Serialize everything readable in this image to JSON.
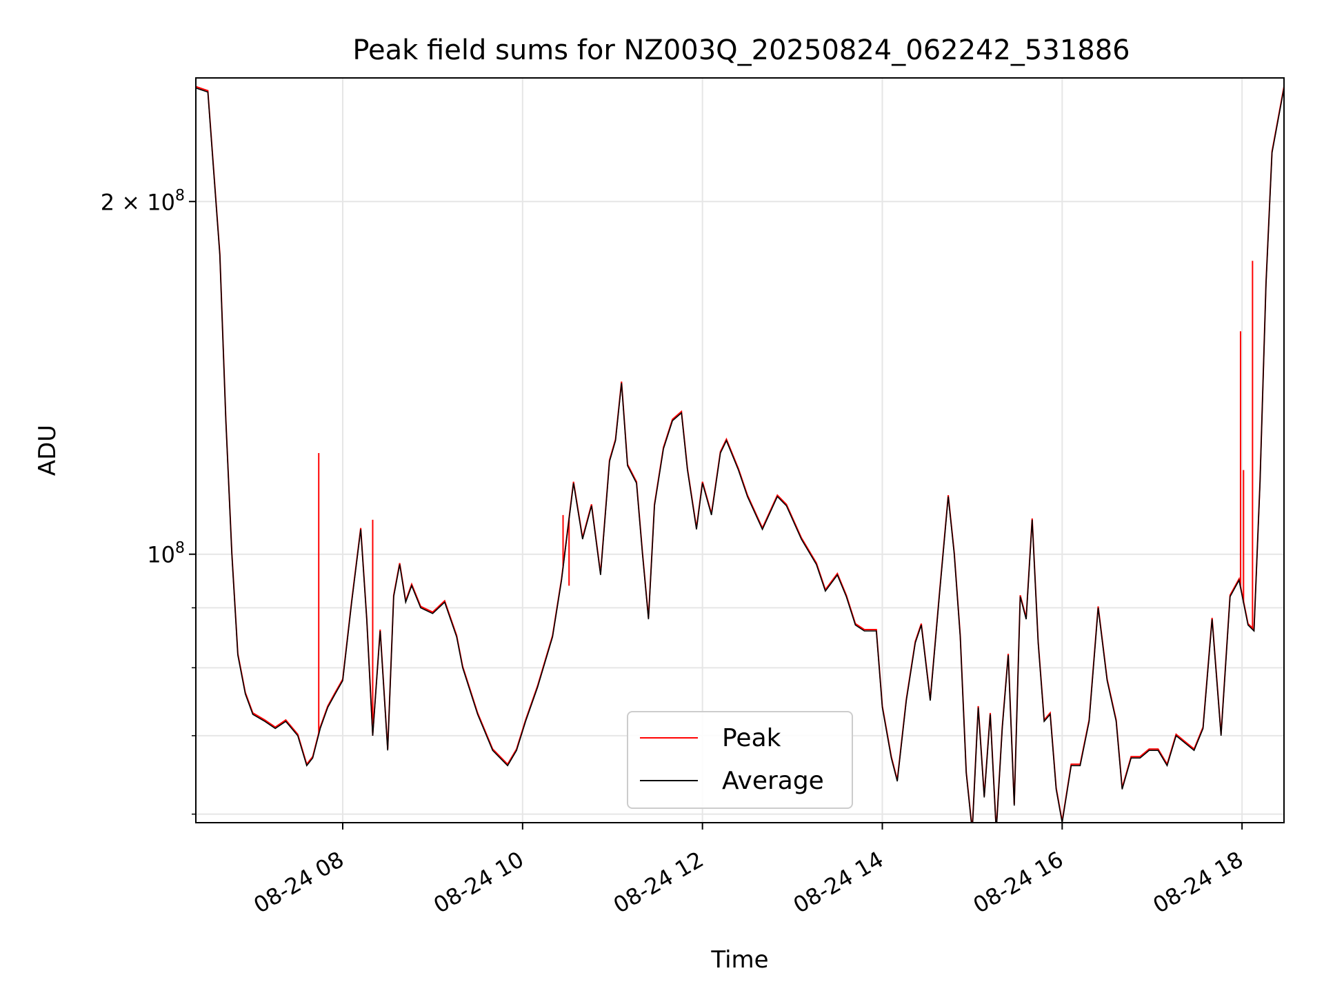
{
  "chart_data": {
    "type": "line",
    "title": "Peak field sums for NZ003Q_20250824_062242_531886",
    "xlabel": "Time",
    "ylabel": "ADU",
    "y_scale": "log",
    "grid": true,
    "legend_position": "lower center",
    "xlim": [
      "2025-08-24 06:22",
      "2025-08-24 18:28"
    ],
    "ylim": [
      59000000,
      255000000
    ],
    "x_ticks": [
      {
        "value": "2025-08-24 08:00",
        "label": "08-24 08"
      },
      {
        "value": "2025-08-24 10:00",
        "label": "08-24 10"
      },
      {
        "value": "2025-08-24 12:00",
        "label": "08-24 12"
      },
      {
        "value": "2025-08-24 14:00",
        "label": "08-24 14"
      },
      {
        "value": "2025-08-24 16:00",
        "label": "08-24 16"
      },
      {
        "value": "2025-08-24 18:00",
        "label": "08-24 18"
      }
    ],
    "y_ticks_major": [
      {
        "value": 100000000,
        "label_base": "10",
        "label_exp": "8",
        "label_coef": ""
      },
      {
        "value": 200000000,
        "label_base": "10",
        "label_exp": "8",
        "label_coef": "2 × "
      }
    ],
    "y_ticks_minor": [
      60000000,
      70000000,
      80000000,
      90000000
    ],
    "series": [
      {
        "name": "Average",
        "color": "#000000",
        "x": [
          "2025-08-24 06:22",
          "2025-08-24 06:30",
          "2025-08-24 06:38",
          "2025-08-24 06:42",
          "2025-08-24 06:46",
          "2025-08-24 06:50",
          "2025-08-24 06:55",
          "2025-08-24 07:00",
          "2025-08-24 07:08",
          "2025-08-24 07:15",
          "2025-08-24 07:22",
          "2025-08-24 07:30",
          "2025-08-24 07:36",
          "2025-08-24 07:40",
          "2025-08-24 07:45",
          "2025-08-24 07:50",
          "2025-08-24 07:55",
          "2025-08-24 08:00",
          "2025-08-24 08:06",
          "2025-08-24 08:12",
          "2025-08-24 08:16",
          "2025-08-24 08:20",
          "2025-08-24 08:25",
          "2025-08-24 08:30",
          "2025-08-24 08:34",
          "2025-08-24 08:38",
          "2025-08-24 08:42",
          "2025-08-24 08:46",
          "2025-08-24 08:52",
          "2025-08-24 09:00",
          "2025-08-24 09:08",
          "2025-08-24 09:16",
          "2025-08-24 09:20",
          "2025-08-24 09:30",
          "2025-08-24 09:40",
          "2025-08-24 09:50",
          "2025-08-24 09:56",
          "2025-08-24 10:02",
          "2025-08-24 10:10",
          "2025-08-24 10:20",
          "2025-08-24 10:26",
          "2025-08-24 10:34",
          "2025-08-24 10:40",
          "2025-08-24 10:46",
          "2025-08-24 10:52",
          "2025-08-24 10:58",
          "2025-08-24 11:02",
          "2025-08-24 11:06",
          "2025-08-24 11:10",
          "2025-08-24 11:16",
          "2025-08-24 11:20",
          "2025-08-24 11:24",
          "2025-08-24 11:28",
          "2025-08-24 11:34",
          "2025-08-24 11:40",
          "2025-08-24 11:46",
          "2025-08-24 11:50",
          "2025-08-24 11:56",
          "2025-08-24 12:00",
          "2025-08-24 12:06",
          "2025-08-24 12:12",
          "2025-08-24 12:16",
          "2025-08-24 12:24",
          "2025-08-24 12:30",
          "2025-08-24 12:40",
          "2025-08-24 12:50",
          "2025-08-24 12:56",
          "2025-08-24 13:06",
          "2025-08-24 13:16",
          "2025-08-24 13:22",
          "2025-08-24 13:30",
          "2025-08-24 13:36",
          "2025-08-24 13:42",
          "2025-08-24 13:48",
          "2025-08-24 13:56",
          "2025-08-24 14:00",
          "2025-08-24 14:06",
          "2025-08-24 14:10",
          "2025-08-24 14:16",
          "2025-08-24 14:22",
          "2025-08-24 14:26",
          "2025-08-24 14:32",
          "2025-08-24 14:38",
          "2025-08-24 14:44",
          "2025-08-24 14:48",
          "2025-08-24 14:52",
          "2025-08-24 14:56",
          "2025-08-24 15:00",
          "2025-08-24 15:04",
          "2025-08-24 15:08",
          "2025-08-24 15:12",
          "2025-08-24 15:16",
          "2025-08-24 15:20",
          "2025-08-24 15:24",
          "2025-08-24 15:28",
          "2025-08-24 15:32",
          "2025-08-24 15:36",
          "2025-08-24 15:40",
          "2025-08-24 15:44",
          "2025-08-24 15:48",
          "2025-08-24 15:52",
          "2025-08-24 15:56",
          "2025-08-24 16:00",
          "2025-08-24 16:06",
          "2025-08-24 16:12",
          "2025-08-24 16:18",
          "2025-08-24 16:24",
          "2025-08-24 16:30",
          "2025-08-24 16:36",
          "2025-08-24 16:40",
          "2025-08-24 16:46",
          "2025-08-24 16:52",
          "2025-08-24 16:58",
          "2025-08-24 17:04",
          "2025-08-24 17:10",
          "2025-08-24 17:16",
          "2025-08-24 17:22",
          "2025-08-24 17:28",
          "2025-08-24 17:34",
          "2025-08-24 17:40",
          "2025-08-24 17:46",
          "2025-08-24 17:52",
          "2025-08-24 17:58",
          "2025-08-24 18:04",
          "2025-08-24 18:08",
          "2025-08-24 18:12",
          "2025-08-24 18:16",
          "2025-08-24 18:20",
          "2025-08-24 18:28"
        ],
        "values": [
          250000000,
          248000000,
          180000000,
          130000000,
          100000000,
          82000000,
          76000000,
          73000000,
          72000000,
          71000000,
          72000000,
          70000000,
          66000000,
          67000000,
          71000000,
          74000000,
          76000000,
          78000000,
          91000000,
          105000000,
          88000000,
          70000000,
          86000000,
          68000000,
          92000000,
          98000000,
          91000000,
          94000000,
          90000000,
          89000000,
          91000000,
          85000000,
          80000000,
          73000000,
          68000000,
          66000000,
          68000000,
          72000000,
          77000000,
          85000000,
          95000000,
          115000000,
          103000000,
          110000000,
          96000000,
          120000000,
          125000000,
          140000000,
          119000000,
          115000000,
          100000000,
          88000000,
          110000000,
          123000000,
          130000000,
          132000000,
          118000000,
          105000000,
          115000000,
          108000000,
          122000000,
          125000000,
          118000000,
          112000000,
          105000000,
          112000000,
          110000000,
          103000000,
          98000000,
          93000000,
          96000000,
          92000000,
          87000000,
          86000000,
          86000000,
          74000000,
          67000000,
          64000000,
          75000000,
          84000000,
          87000000,
          75000000,
          92000000,
          112000000,
          100000000,
          85000000,
          65000000,
          58000000,
          74000000,
          62000000,
          73000000,
          58000000,
          71000000,
          82000000,
          61000000,
          92000000,
          88000000,
          107000000,
          84000000,
          72000000,
          73000000,
          63000000,
          59000000,
          66000000,
          66000000,
          72000000,
          90000000,
          78000000,
          72000000,
          63000000,
          67000000,
          67000000,
          68000000,
          68000000,
          66000000,
          70000000,
          69000000,
          68000000,
          71000000,
          88000000,
          70000000,
          92000000,
          95000000,
          87000000,
          86000000,
          115000000,
          170000000,
          220000000,
          250000000
        ]
      },
      {
        "name": "Peak",
        "color": "#ff0000",
        "spikes": [
          {
            "x": "2025-08-24 07:44",
            "value": 122000000
          },
          {
            "x": "2025-08-24 08:20",
            "value": 107000000
          },
          {
            "x": "2025-08-24 10:27",
            "value": 108000000
          },
          {
            "x": "2025-08-24 10:31",
            "value": 94000000
          },
          {
            "x": "2025-08-24 17:59",
            "value": 155000000
          },
          {
            "x": "2025-08-24 18:01",
            "value": 118000000
          },
          {
            "x": "2025-08-24 18:07",
            "value": 178000000
          }
        ]
      }
    ]
  }
}
